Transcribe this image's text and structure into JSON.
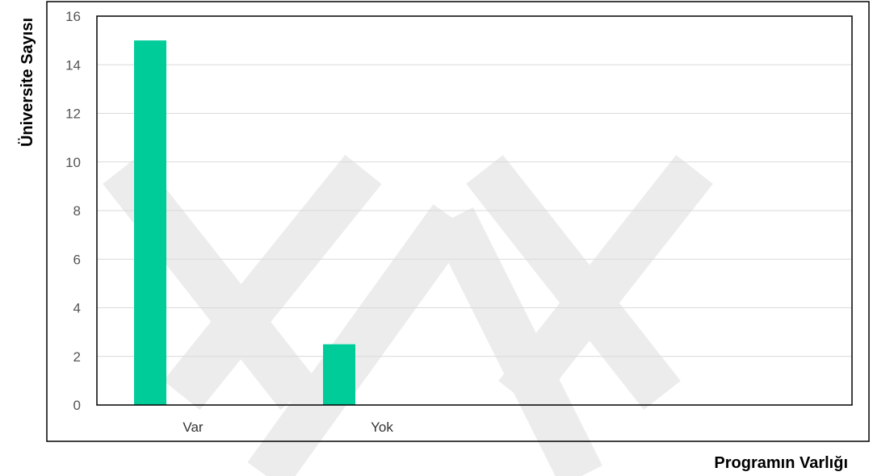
{
  "chart_data": {
    "type": "bar",
    "categories": [
      "Var",
      "Yok"
    ],
    "values": [
      15,
      2.5
    ],
    "xlabel": "Programın Varlığı",
    "ylabel": "Üniversite Sayısı",
    "ylim": [
      0,
      16
    ],
    "yticks": [
      0,
      2,
      4,
      6,
      8,
      10,
      12,
      14,
      16
    ],
    "grid": true,
    "legend": "none",
    "bar_color": "#00cc99",
    "grid_color": "#d9d9d9",
    "axis_color": "#000000"
  }
}
